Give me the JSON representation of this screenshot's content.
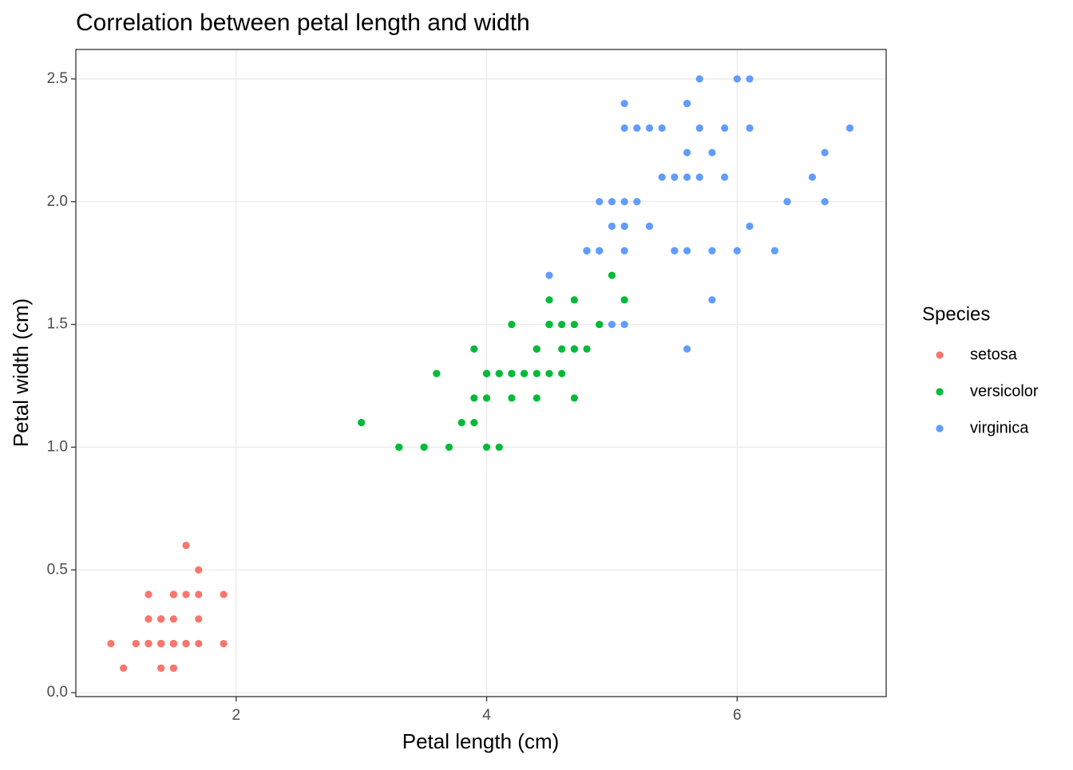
{
  "chart_data": {
    "type": "scatter",
    "title": "Correlation between petal length and width",
    "x_label": "Petal length (cm)",
    "y_label": "Petal width (cm)",
    "legend_title": "Species",
    "legend_position": "right",
    "grid": true,
    "xlim": [
      0.72,
      7.19
    ],
    "ylim": [
      -0.016,
      2.62
    ],
    "xticks": [
      2,
      4,
      6
    ],
    "yticks": [
      {
        "value": 0,
        "label": "0.0"
      },
      0.5,
      {
        "value": 1,
        "label": "1.0"
      },
      1.5,
      {
        "value": 2,
        "label": "2.0"
      },
      2.5
    ],
    "series": [
      {
        "name": "setosa",
        "color": "#F8766D",
        "x": [
          1.4,
          1.4,
          1.3,
          1.5,
          1.4,
          1.7,
          1.4,
          1.5,
          1.4,
          1.5,
          1.5,
          1.6,
          1.4,
          1.1,
          1.2,
          1.5,
          1.3,
          1.4,
          1.7,
          1.5,
          1.7,
          1.5,
          1.0,
          1.7,
          1.9,
          1.6,
          1.6,
          1.5,
          1.4,
          1.6,
          1.6,
          1.5,
          1.5,
          1.4,
          1.5,
          1.2,
          1.3,
          1.4,
          1.3,
          1.5,
          1.3,
          1.3,
          1.3,
          1.6,
          1.9,
          1.4,
          1.6,
          1.4,
          1.5,
          1.4
        ],
        "values": [
          0.2,
          0.2,
          0.2,
          0.2,
          0.2,
          0.4,
          0.3,
          0.2,
          0.2,
          0.1,
          0.2,
          0.2,
          0.1,
          0.1,
          0.2,
          0.4,
          0.4,
          0.3,
          0.3,
          0.3,
          0.2,
          0.4,
          0.2,
          0.5,
          0.2,
          0.2,
          0.4,
          0.2,
          0.2,
          0.2,
          0.2,
          0.4,
          0.1,
          0.2,
          0.2,
          0.2,
          0.2,
          0.1,
          0.2,
          0.2,
          0.3,
          0.3,
          0.2,
          0.6,
          0.4,
          0.3,
          0.2,
          0.2,
          0.2,
          0.2
        ]
      },
      {
        "name": "versicolor",
        "color": "#00BA38",
        "x": [
          4.7,
          4.5,
          4.9,
          4.0,
          4.6,
          4.5,
          4.7,
          3.3,
          4.6,
          3.9,
          3.5,
          4.2,
          4.0,
          4.7,
          3.6,
          4.4,
          4.5,
          4.1,
          4.5,
          3.9,
          4.8,
          4.0,
          4.9,
          4.7,
          4.3,
          4.4,
          4.8,
          5.0,
          4.5,
          3.5,
          3.8,
          3.7,
          3.9,
          5.1,
          4.5,
          4.5,
          4.7,
          4.4,
          4.1,
          4.0,
          4.4,
          4.6,
          4.0,
          3.3,
          4.2,
          4.2,
          4.2,
          4.3,
          3.0,
          4.1
        ],
        "values": [
          1.4,
          1.5,
          1.5,
          1.3,
          1.5,
          1.3,
          1.6,
          1.0,
          1.3,
          1.4,
          1.0,
          1.5,
          1.0,
          1.4,
          1.3,
          1.4,
          1.5,
          1.0,
          1.5,
          1.1,
          1.8,
          1.3,
          1.5,
          1.2,
          1.3,
          1.4,
          1.4,
          1.7,
          1.5,
          1.0,
          1.1,
          1.0,
          1.2,
          1.6,
          1.5,
          1.6,
          1.5,
          1.3,
          1.3,
          1.3,
          1.2,
          1.4,
          1.2,
          1.0,
          1.3,
          1.2,
          1.3,
          1.3,
          1.1,
          1.3
        ]
      },
      {
        "name": "virginica",
        "color": "#619CFF",
        "x": [
          6.0,
          5.1,
          5.9,
          5.6,
          5.8,
          6.6,
          4.5,
          6.3,
          5.8,
          6.1,
          5.1,
          5.3,
          5.5,
          5.0,
          5.1,
          5.3,
          5.5,
          6.7,
          6.9,
          5.0,
          5.7,
          4.9,
          6.7,
          4.9,
          5.7,
          6.0,
          4.8,
          4.9,
          5.6,
          5.8,
          6.1,
          6.4,
          5.6,
          5.1,
          5.6,
          6.1,
          5.6,
          5.5,
          4.8,
          5.4,
          5.6,
          5.1,
          5.1,
          5.9,
          5.7,
          5.2,
          5.0,
          5.2,
          5.4,
          5.1
        ],
        "values": [
          2.5,
          1.9,
          2.1,
          1.8,
          2.2,
          2.1,
          1.7,
          1.8,
          1.8,
          2.5,
          2.0,
          1.9,
          2.1,
          2.0,
          2.4,
          2.3,
          1.8,
          2.2,
          2.3,
          1.5,
          2.3,
          2.0,
          2.0,
          1.8,
          2.1,
          1.8,
          1.8,
          1.8,
          2.1,
          1.6,
          1.9,
          2.0,
          2.2,
          1.5,
          1.4,
          2.3,
          2.4,
          1.8,
          1.8,
          2.1,
          2.4,
          2.3,
          1.9,
          2.3,
          2.5,
          2.3,
          1.9,
          2.0,
          2.3,
          1.8
        ]
      }
    ]
  }
}
